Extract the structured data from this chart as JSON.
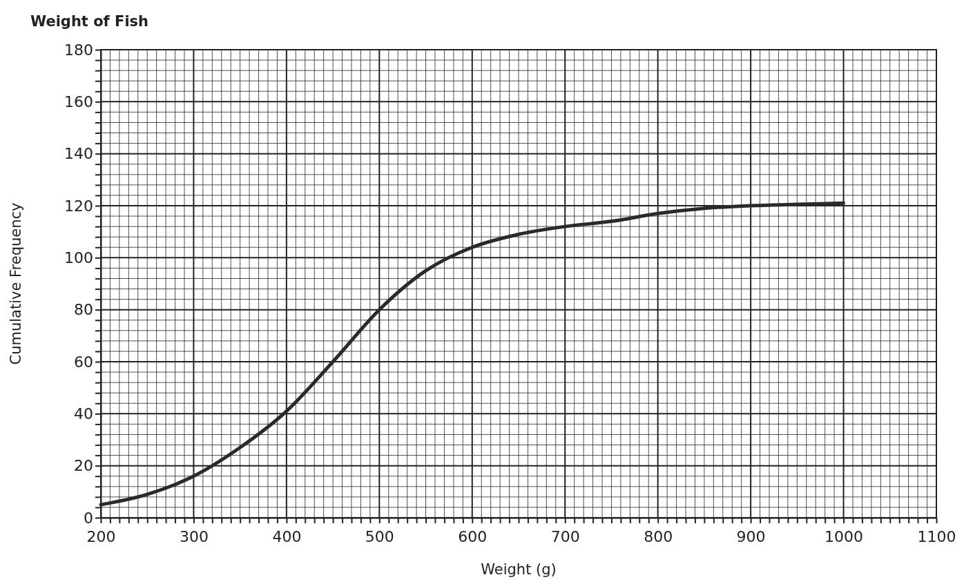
{
  "chart_data": {
    "type": "line",
    "title": "Weight of Fish",
    "xlabel": "Weight (g)",
    "ylabel": "Cumulative Frequency",
    "x": [
      200,
      250,
      300,
      350,
      400,
      450,
      500,
      550,
      600,
      650,
      700,
      750,
      800,
      850,
      900,
      950,
      1000
    ],
    "series": [
      {
        "color": "#2a2a2a",
        "values": [
          5,
          9,
          16,
          27,
          41,
          60,
          80,
          95,
          104,
          109,
          112,
          114,
          117,
          119,
          120,
          120.5,
          121
        ]
      }
    ],
    "xlim": [
      200,
      1100
    ],
    "ylim": [
      0,
      180
    ],
    "xticks": [
      200,
      {
        "value": 210,
        "label": null
      },
      {
        "value": 220,
        "label": null
      },
      {
        "value": 230,
        "label": null
      },
      {
        "value": 240,
        "label": null
      },
      {
        "value": 250,
        "label": null
      },
      {
        "value": 260,
        "label": null
      },
      {
        "value": 270,
        "label": null
      },
      {
        "value": 280,
        "label": null
      },
      {
        "value": 290,
        "label": null
      },
      300,
      {
        "value": 310,
        "label": null
      },
      {
        "value": 320,
        "label": null
      },
      {
        "value": 330,
        "label": null
      },
      {
        "value": 340,
        "label": null
      },
      {
        "value": 350,
        "label": null
      },
      {
        "value": 360,
        "label": null
      },
      {
        "value": 370,
        "label": null
      },
      {
        "value": 380,
        "label": null
      },
      {
        "value": 390,
        "label": null
      },
      400,
      {
        "value": 410,
        "label": null
      },
      {
        "value": 420,
        "label": null
      },
      {
        "value": 430,
        "label": null
      },
      {
        "value": 440,
        "label": null
      },
      {
        "value": 450,
        "label": null
      },
      {
        "value": 460,
        "label": null
      },
      {
        "value": 470,
        "label": null
      },
      {
        "value": 480,
        "label": null
      },
      {
        "value": 490,
        "label": null
      },
      500,
      {
        "value": 510,
        "label": null
      },
      {
        "value": 520,
        "label": null
      },
      {
        "value": 530,
        "label": null
      },
      {
        "value": 540,
        "label": null
      },
      {
        "value": 550,
        "label": null
      },
      {
        "value": 560,
        "label": null
      },
      {
        "value": 570,
        "label": null
      },
      {
        "value": 580,
        "label": null
      },
      {
        "value": 590,
        "label": null
      },
      600,
      {
        "value": 610,
        "label": null
      },
      {
        "value": 620,
        "label": null
      },
      {
        "value": 630,
        "label": null
      },
      {
        "value": 640,
        "label": null
      },
      {
        "value": 650,
        "label": null
      },
      {
        "value": 660,
        "label": null
      },
      {
        "value": 670,
        "label": null
      },
      {
        "value": 680,
        "label": null
      },
      {
        "value": 690,
        "label": null
      },
      700,
      {
        "value": 710,
        "label": null
      },
      {
        "value": 720,
        "label": null
      },
      {
        "value": 730,
        "label": null
      },
      {
        "value": 740,
        "label": null
      },
      {
        "value": 750,
        "label": null
      },
      {
        "value": 760,
        "label": null
      },
      {
        "value": 770,
        "label": null
      },
      {
        "value": 780,
        "label": null
      },
      {
        "value": 790,
        "label": null
      },
      800,
      {
        "value": 810,
        "label": null
      },
      {
        "value": 820,
        "label": null
      },
      {
        "value": 830,
        "label": null
      },
      {
        "value": 840,
        "label": null
      },
      {
        "value": 850,
        "label": null
      },
      {
        "value": 860,
        "label": null
      },
      {
        "value": 870,
        "label": null
      },
      {
        "value": 880,
        "label": null
      },
      {
        "value": 890,
        "label": null
      },
      900,
      {
        "value": 910,
        "label": null
      },
      {
        "value": 920,
        "label": null
      },
      {
        "value": 930,
        "label": null
      },
      {
        "value": 940,
        "label": null
      },
      {
        "value": 950,
        "label": null
      },
      {
        "value": 960,
        "label": null
      },
      {
        "value": 970,
        "label": null
      },
      {
        "value": 980,
        "label": null
      },
      {
        "value": 990,
        "label": null
      },
      1000,
      {
        "value": 1010,
        "label": null
      },
      {
        "value": 1020,
        "label": null
      },
      {
        "value": 1030,
        "label": null
      },
      {
        "value": 1040,
        "label": null
      },
      {
        "value": 1050,
        "label": null
      },
      {
        "value": 1060,
        "label": null
      },
      {
        "value": 1070,
        "label": null
      },
      {
        "value": 1080,
        "label": null
      },
      {
        "value": 1090,
        "label": null
      },
      1100
    ],
    "yticks": [
      0,
      {
        "value": 4,
        "label": null
      },
      {
        "value": 8,
        "label": null
      },
      {
        "value": 12,
        "label": null
      },
      {
        "value": 16,
        "label": null
      },
      20,
      {
        "value": 24,
        "label": null
      },
      {
        "value": 28,
        "label": null
      },
      {
        "value": 32,
        "label": null
      },
      {
        "value": 36,
        "label": null
      },
      40,
      {
        "value": 44,
        "label": null
      },
      {
        "value": 48,
        "label": null
      },
      {
        "value": 52,
        "label": null
      },
      {
        "value": 56,
        "label": null
      },
      60,
      {
        "value": 64,
        "label": null
      },
      {
        "value": 68,
        "label": null
      },
      {
        "value": 72,
        "label": null
      },
      {
        "value": 76,
        "label": null
      },
      80,
      {
        "value": 84,
        "label": null
      },
      {
        "value": 88,
        "label": null
      },
      {
        "value": 92,
        "label": null
      },
      {
        "value": 96,
        "label": null
      },
      100,
      {
        "value": 104,
        "label": null
      },
      {
        "value": 108,
        "label": null
      },
      {
        "value": 112,
        "label": null
      },
      {
        "value": 116,
        "label": null
      },
      120,
      {
        "value": 124,
        "label": null
      },
      {
        "value": 128,
        "label": null
      },
      {
        "value": 132,
        "label": null
      },
      {
        "value": 136,
        "label": null
      },
      140,
      {
        "value": 144,
        "label": null
      },
      {
        "value": 148,
        "label": null
      },
      {
        "value": 152,
        "label": null
      },
      {
        "value": 156,
        "label": null
      },
      160,
      {
        "value": 164,
        "label": null
      },
      {
        "value": 168,
        "label": null
      },
      {
        "value": 172,
        "label": null
      },
      {
        "value": 176,
        "label": null
      },
      180
    ],
    "grid": true,
    "marker": "none",
    "line_style": "solid"
  }
}
